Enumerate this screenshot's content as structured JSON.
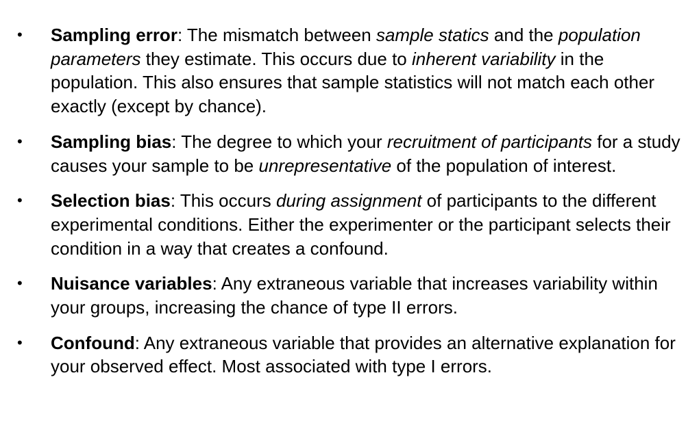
{
  "items": [
    {
      "bullet": "•",
      "runs": [
        {
          "text": "Sampling error",
          "style": "bold"
        },
        {
          "text": ": The mismatch between ",
          "style": "normal"
        },
        {
          "text": "sample statics",
          "style": "italic"
        },
        {
          "text": " and the ",
          "style": "normal"
        },
        {
          "text": "population parameters",
          "style": "italic"
        },
        {
          "text": " they estimate. This occurs due to ",
          "style": "normal"
        },
        {
          "text": "inherent variability",
          "style": "italic"
        },
        {
          "text": " in the population. This also ensures that sample statistics will not match each other exactly (except by chance).",
          "style": "normal"
        }
      ]
    },
    {
      "bullet": "•",
      "runs": [
        {
          "text": "Sampling bias",
          "style": "bold"
        },
        {
          "text": ": The degree to which your ",
          "style": "normal"
        },
        {
          "text": "recruitment of participants",
          "style": "italic"
        },
        {
          "text": " for a study causes your sample to be ",
          "style": "normal"
        },
        {
          "text": "unrepresentative",
          "style": "italic"
        },
        {
          "text": " of the population of interest.",
          "style": "normal"
        }
      ]
    },
    {
      "bullet": "•",
      "runs": [
        {
          "text": "Selection bias",
          "style": "bold"
        },
        {
          "text": ": This occurs ",
          "style": "normal"
        },
        {
          "text": "during assignment",
          "style": "italic"
        },
        {
          "text": " of participants to the different experimental conditions. Either the experimenter or the participant selects their condition in a way that creates a confound.",
          "style": "normal"
        }
      ]
    },
    {
      "bullet": "•",
      "runs": [
        {
          "text": "Nuisance variables",
          "style": "bold"
        },
        {
          "text": ": Any extraneous variable that increases variability within your groups, increasing the chance of type II errors.",
          "style": "normal"
        }
      ]
    },
    {
      "bullet": "•",
      "runs": [
        {
          "text": "Confound",
          "style": "bold"
        },
        {
          "text": ": Any extraneous variable that provides an alternative explanation for your observed effect. Most associated with type I errors.",
          "style": "normal"
        }
      ]
    }
  ]
}
